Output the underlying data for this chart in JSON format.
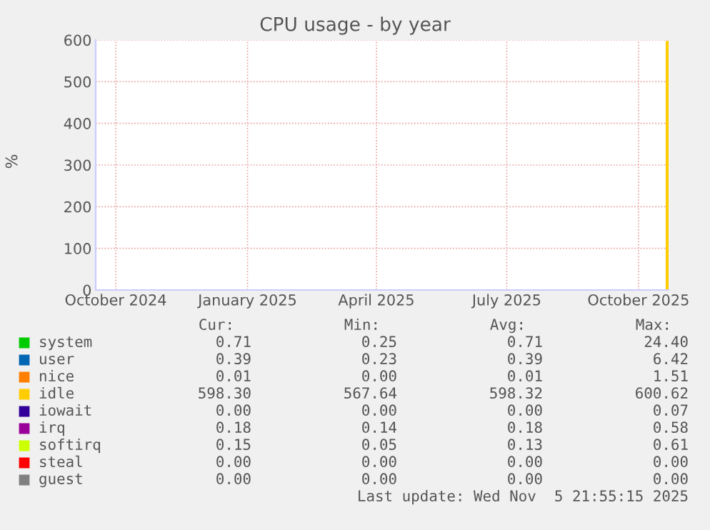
{
  "chart_data": {
    "type": "bar",
    "title": "CPU usage - by year",
    "ylabel": "%",
    "x": [
      "2025-11-04"
    ],
    "series": [
      {
        "name": "system",
        "color": "#00cc00",
        "values": [
          null
        ]
      },
      {
        "name": "user",
        "color": "#0066b3",
        "values": [
          0
        ]
      },
      {
        "name": "nice",
        "color": "#ff8000",
        "values": [
          0
        ]
      },
      {
        "name": "idle",
        "color": "#ffcc00",
        "values": [
          598
        ]
      },
      {
        "name": "iowait",
        "color": "#330099",
        "values": [
          0
        ]
      },
      {
        "name": "irq",
        "color": "#990099",
        "values": [
          0
        ]
      },
      {
        "name": "softirq",
        "color": "#ccff00",
        "values": [
          0
        ]
      },
      {
        "name": "steal",
        "color": "#ff0000",
        "values": [
          0
        ]
      },
      {
        "name": "guest",
        "color": "#808080",
        "values": [
          0
        ]
      }
    ],
    "xlim": [
      "2024-10-01",
      "2025-11-05"
    ],
    "xticks": [
      {
        "value": "2024-10-15",
        "label": "October 2024"
      },
      {
        "value": "2025-01-15",
        "label": "January 2025"
      },
      {
        "value": "2025-04-15",
        "label": "April 2025"
      },
      {
        "value": "2025-07-15",
        "label": "July 2025"
      },
      {
        "value": "2025-10-15",
        "label": "October 2025"
      }
    ],
    "ylim": [
      0,
      600
    ],
    "yticks": [
      0,
      100,
      200,
      300,
      400,
      500,
      600
    ],
    "grid": true,
    "legend": "bottom",
    "annotations": [
      "Cur:",
      "Min:",
      "Avg:",
      "Max:",
      "0.71",
      "0.25",
      "0.71",
      "24.40",
      "0.39",
      "0.23",
      "0.39",
      "6.42",
      "0.01",
      "0.00",
      "0.01",
      "1.51",
      "598.30",
      "567.64",
      "598.32",
      "600.62",
      "0.00",
      "0.00",
      "0.00",
      "0.07",
      "0.18",
      "0.14",
      "0.18",
      "0.58",
      "0.15",
      "0.05",
      "0.13",
      "0.61",
      "0.00",
      "0.00",
      "0.00",
      "0.00",
      "0.00",
      "0.00",
      "0.00",
      "0.00",
      "Last update: Wed Nov  5 21:55:15 2025"
    ]
  }
}
